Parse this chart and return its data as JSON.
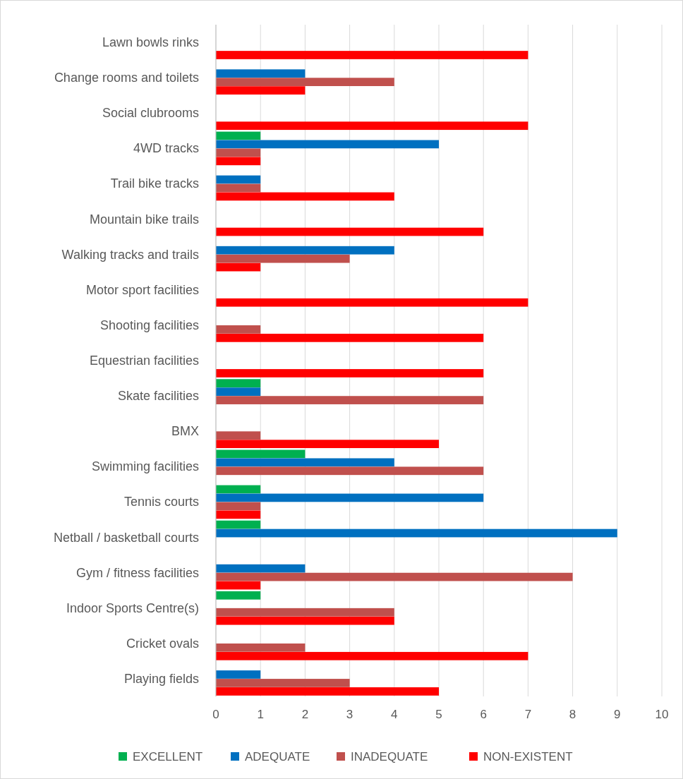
{
  "chart_data": {
    "type": "bar",
    "orientation": "horizontal",
    "categories": [
      "Lawn bowls rinks",
      "Change rooms and toilets",
      "Social clubrooms",
      "4WD tracks",
      "Trail bike tracks",
      "Mountain bike trails",
      "Walking tracks and trails",
      "Motor sport facilities",
      "Shooting facilities",
      "Equestrian facilities",
      "Skate facilities",
      "BMX",
      "Swimming facilities",
      "Tennis courts",
      "Netball / basketball courts",
      "Gym / fitness facilities",
      "Indoor Sports Centre(s)",
      "Cricket ovals",
      "Playing fields"
    ],
    "series": [
      {
        "name": "EXCELLENT",
        "color": "#00b050",
        "values": [
          0,
          0,
          0,
          1,
          0,
          0,
          0,
          0,
          0,
          0,
          1,
          0,
          2,
          1,
          1,
          0,
          1,
          0,
          0
        ]
      },
      {
        "name": "ADEQUATE",
        "color": "#0070c0",
        "values": [
          0,
          2,
          0,
          5,
          1,
          0,
          4,
          0,
          0,
          0,
          1,
          0,
          4,
          6,
          9,
          2,
          0,
          0,
          1
        ]
      },
      {
        "name": "INADEQUATE",
        "color": "#c0504d",
        "values": [
          0,
          4,
          0,
          1,
          1,
          0,
          3,
          0,
          1,
          0,
          6,
          1,
          6,
          1,
          0,
          8,
          4,
          2,
          3
        ]
      },
      {
        "name": "NON-EXISTENT",
        "color": "#ff0000",
        "values": [
          7,
          2,
          7,
          1,
          4,
          6,
          1,
          7,
          6,
          6,
          0,
          5,
          0,
          1,
          0,
          1,
          4,
          7,
          5
        ]
      }
    ],
    "xlim": [
      0,
      10
    ],
    "xticks": [
      0,
      1,
      2,
      3,
      4,
      5,
      6,
      7,
      8,
      9,
      10
    ],
    "grid": "x",
    "legend": "bottom"
  }
}
